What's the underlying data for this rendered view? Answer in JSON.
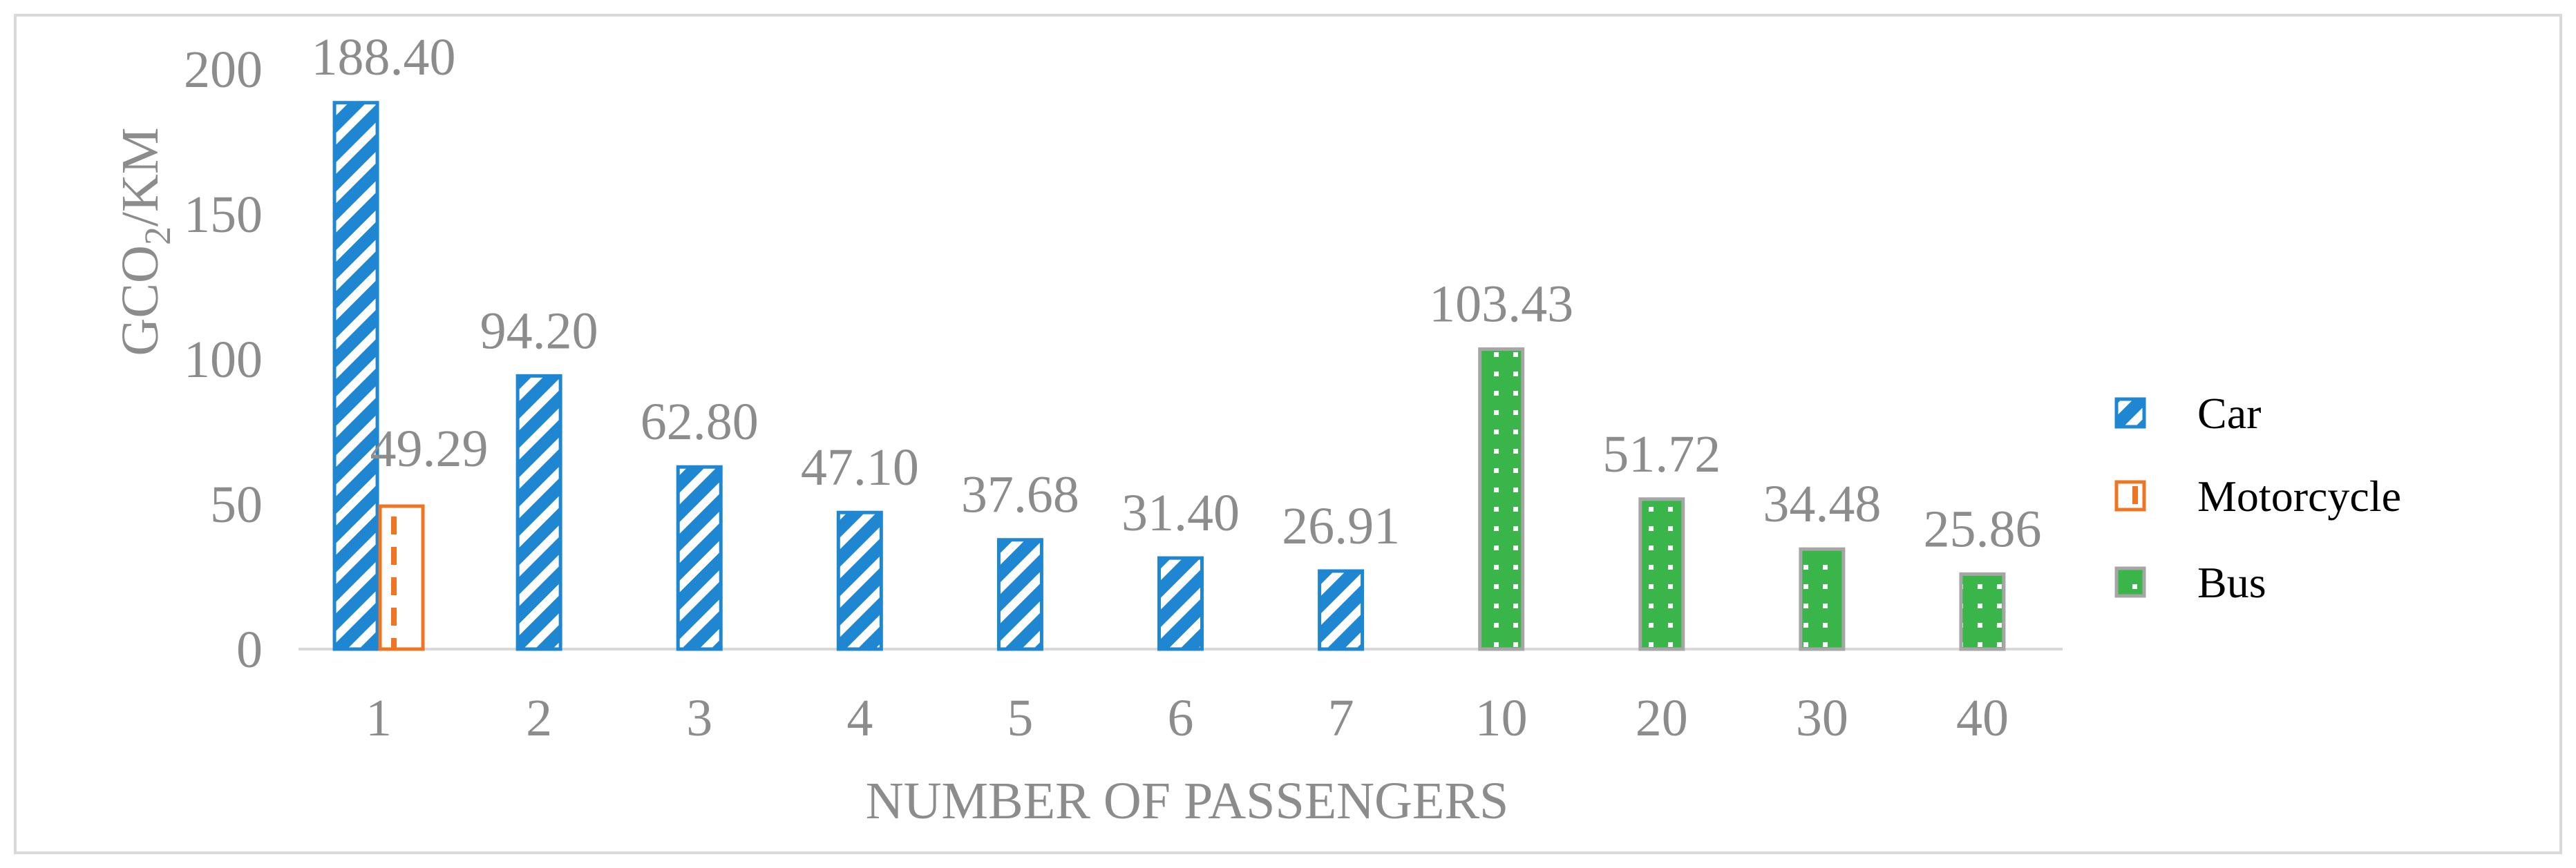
{
  "chart_data": {
    "type": "bar",
    "categories": [
      "1",
      "2",
      "3",
      "4",
      "5",
      "6",
      "7",
      "10",
      "20",
      "30",
      "40"
    ],
    "series": [
      {
        "name": "Car",
        "values": [
          188.4,
          94.2,
          62.8,
          47.1,
          37.68,
          31.4,
          26.91,
          null,
          null,
          null,
          null
        ],
        "labels": [
          "188.40",
          "94.20",
          "62.80",
          "47.10",
          "37.68",
          "31.40",
          "26.91",
          null,
          null,
          null,
          null
        ]
      },
      {
        "name": "Motorcycle",
        "values": [
          49.29,
          null,
          null,
          null,
          null,
          null,
          null,
          null,
          null,
          null,
          null
        ],
        "labels": [
          "49.29",
          null,
          null,
          null,
          null,
          null,
          null,
          null,
          null,
          null,
          null
        ]
      },
      {
        "name": "Bus",
        "values": [
          null,
          null,
          null,
          null,
          null,
          null,
          null,
          103.43,
          51.72,
          34.48,
          25.86
        ],
        "labels": [
          null,
          null,
          null,
          null,
          null,
          null,
          null,
          "103.43",
          "51.72",
          "34.48",
          "25.86"
        ]
      }
    ],
    "ylabel_main": "GCO",
    "ylabel_sub": "2",
    "ylabel_tail": "/KM",
    "xlabel": "NUMBER OF PASSENGERS",
    "ylim": [
      0,
      200
    ],
    "yticks": [
      "0",
      "50",
      "100",
      "150",
      "200"
    ],
    "legend_position": "right",
    "colors": {
      "Car": "#1f86d1",
      "Motorcycle": "#ee7623",
      "Bus": "#39b54a",
      "BusBorder": "#a6a6a6"
    }
  }
}
